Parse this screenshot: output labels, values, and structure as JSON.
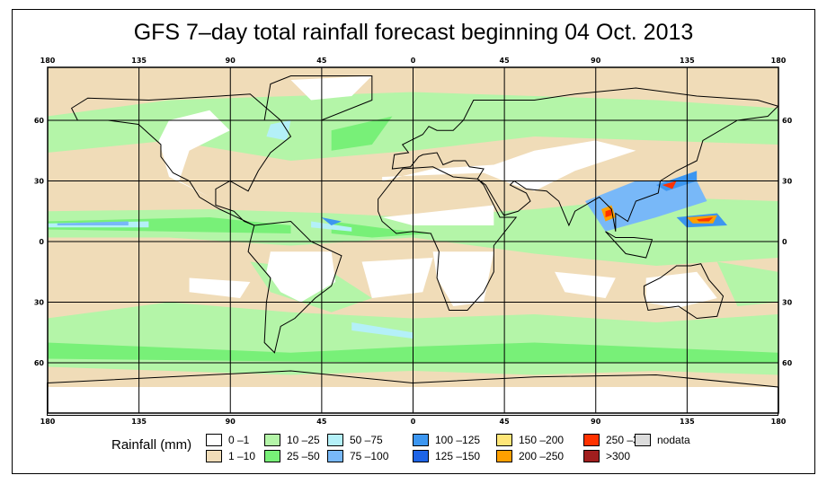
{
  "title": "GFS 7–day total rainfall forecast beginning 04 Oct. 2013",
  "axes": {
    "lon_labels": [
      "180",
      "135",
      "90",
      "45",
      "0",
      "45",
      "90",
      "135",
      "180"
    ],
    "lat_labels": [
      "60",
      "30",
      "0",
      "30",
      "60"
    ]
  },
  "legend": {
    "title": "Rainfall (mm)",
    "items": [
      {
        "label": "0 –1",
        "color": "#ffffff"
      },
      {
        "label": "1 –10",
        "color": "#f0dcb8"
      },
      {
        "label": "10 –25",
        "color": "#b4f5a8"
      },
      {
        "label": "25 –50",
        "color": "#78f078"
      },
      {
        "label": "50 –75",
        "color": "#b4f0f8"
      },
      {
        "label": "75 –100",
        "color": "#78b8f8"
      },
      {
        "label": "100 –125",
        "color": "#3c96f0"
      },
      {
        "label": "125 –150",
        "color": "#1e64e6"
      },
      {
        "label": "150 –200",
        "color": "#ffe678"
      },
      {
        "label": "200 –250",
        "color": "#ffa000"
      },
      {
        "label": "250 –300",
        "color": "#ff3200"
      },
      {
        "label": ">300",
        "color": "#a01e1e"
      },
      {
        "label": "nodata",
        "color": "#dcdcdc"
      }
    ]
  }
}
